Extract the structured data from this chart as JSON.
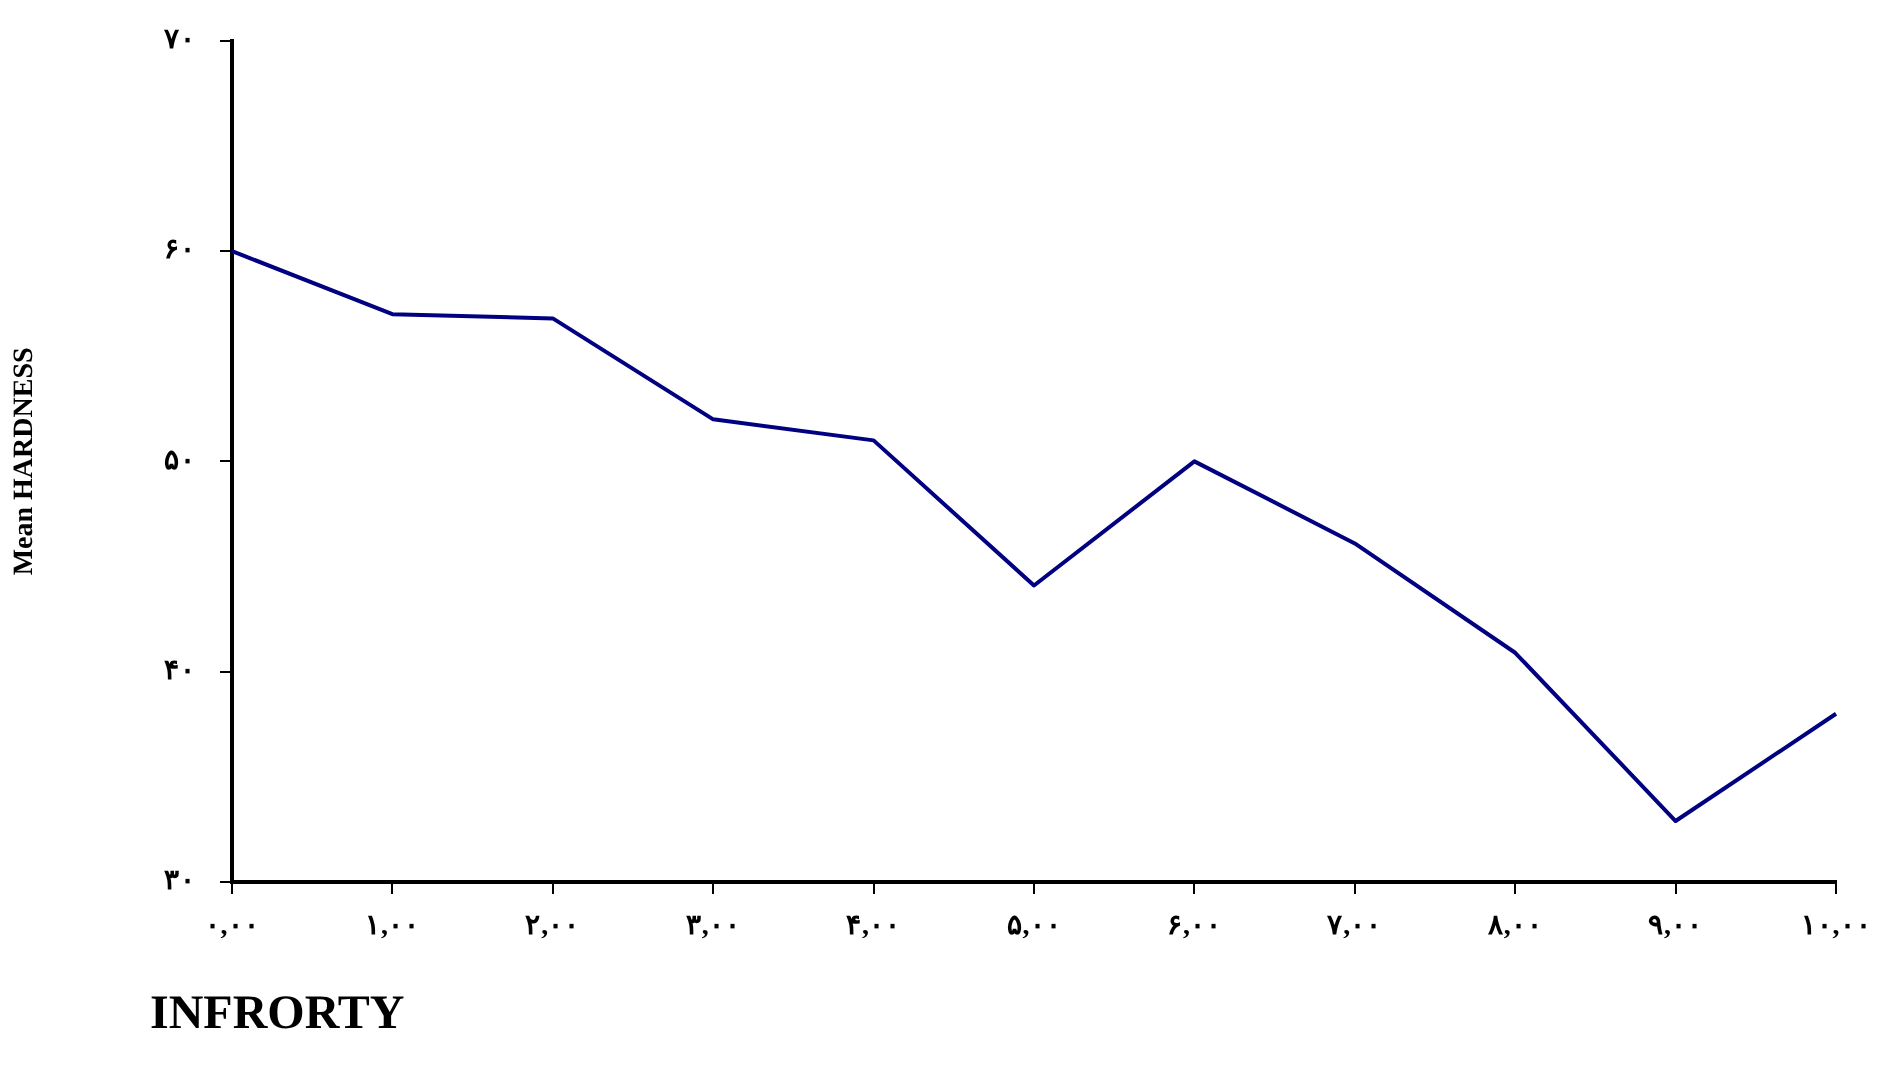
{
  "chart_data": {
    "type": "line",
    "xlabel": "INFRORTY",
    "ylabel": "Mean HARDNESS",
    "categories": [
      "۰,۰۰",
      "۱,۰۰",
      "۲,۰۰",
      "۳,۰۰",
      "۴,۰۰",
      "۵,۰۰",
      "۶,۰۰",
      "۷,۰۰",
      "۸,۰۰",
      "۹,۰۰",
      "۱۰,۰۰"
    ],
    "series": [
      {
        "color": "#000080",
        "values": [
          60.0,
          57.0,
          56.8,
          52.0,
          51.0,
          44.1,
          50.0,
          46.1,
          40.9,
          32.9,
          38.0
        ]
      }
    ],
    "ylim": [
      30,
      70
    ],
    "yticks": [
      {
        "value": 30,
        "label": "۳۰"
      },
      {
        "value": 40,
        "label": "۴۰"
      },
      {
        "value": 50,
        "label": "۵۰"
      },
      {
        "value": 60,
        "label": "۶۰"
      },
      {
        "value": 70,
        "label": "۷۰"
      }
    ],
    "grid": false,
    "legend": false,
    "marker": "none",
    "line_style": "solid"
  }
}
